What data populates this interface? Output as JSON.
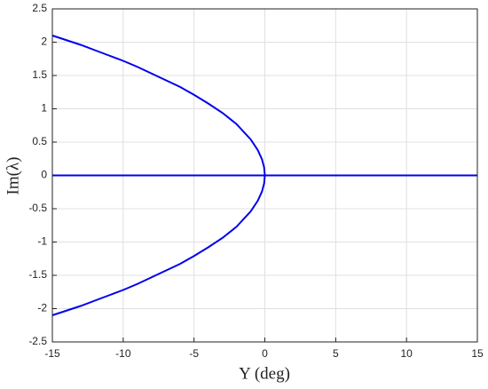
{
  "chart_data": {
    "type": "line",
    "x_label": "Υ (deg)",
    "y_label": "Im(λ)",
    "series": [
      {
        "color": "#0000ee",
        "x": [
          -15,
          -14,
          -13,
          -12,
          -11,
          -10,
          -9,
          -8,
          -7,
          -6,
          -5,
          -4,
          -3,
          -2,
          -1,
          -0.5,
          -0.2,
          -0.05,
          0
        ],
        "values": [
          2.1,
          2.03,
          1.96,
          1.88,
          1.8,
          1.72,
          1.63,
          1.53,
          1.43,
          1.33,
          1.21,
          1.08,
          0.94,
          0.77,
          0.54,
          0.38,
          0.24,
          0.12,
          0
        ]
      },
      {
        "color": "#0000ee",
        "x": [
          -15,
          -14,
          -13,
          -12,
          -11,
          -10,
          -9,
          -8,
          -7,
          -6,
          -5,
          -4,
          -3,
          -2,
          -1,
          -0.5,
          -0.2,
          -0.05,
          0
        ],
        "values": [
          -2.1,
          -2.03,
          -1.96,
          -1.88,
          -1.8,
          -1.72,
          -1.63,
          -1.53,
          -1.43,
          -1.33,
          -1.21,
          -1.08,
          -0.94,
          -0.77,
          -0.54,
          -0.38,
          -0.24,
          -0.12,
          0
        ]
      },
      {
        "color": "#0000ee",
        "x": [
          -15,
          15
        ],
        "values": [
          0,
          0
        ]
      }
    ],
    "xlim": [
      -15,
      15
    ],
    "xticks": [
      -15,
      -10,
      -5,
      0,
      5,
      10,
      15
    ],
    "ylim": [
      -2.5,
      2.5
    ],
    "yticks": [
      -2.5,
      -2,
      -1.5,
      -1,
      -0.5,
      0,
      0.5,
      1,
      1.5,
      2,
      2.5
    ],
    "grid": true
  }
}
